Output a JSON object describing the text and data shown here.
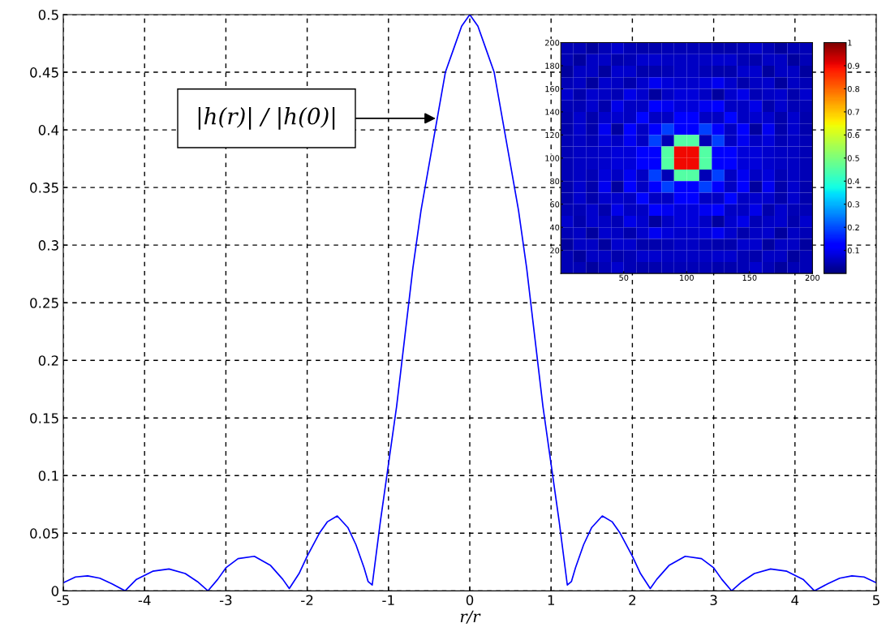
{
  "chart_data": [
    {
      "type": "line",
      "xlabel": "r/r",
      "x": [
        -5,
        -4.85,
        -4.7,
        -4.55,
        -4.4,
        -4.24,
        -4.1,
        -3.9,
        -3.7,
        -3.5,
        -3.35,
        -3.22,
        -3.1,
        -3,
        -2.85,
        -2.65,
        -2.45,
        -2.3,
        -2.22,
        -2.1,
        -2,
        -1.85,
        -1.75,
        -1.63,
        -1.5,
        -1.4,
        -1.3,
        -1.25,
        -1.2,
        -1.1,
        -1,
        -0.9,
        -0.8,
        -0.7,
        -0.6,
        -0.5,
        -0.4,
        -0.3,
        -0.2,
        -0.1,
        0,
        0.1,
        0.2,
        0.3,
        0.4,
        0.5,
        0.6,
        0.7,
        0.8,
        0.9,
        1,
        1.1,
        1.2,
        1.25,
        1.3,
        1.4,
        1.5,
        1.63,
        1.75,
        1.85,
        2,
        2.1,
        2.22,
        2.3,
        2.45,
        2.65,
        2.85,
        3,
        3.1,
        3.22,
        3.35,
        3.5,
        3.7,
        3.9,
        4.1,
        4.24,
        4.4,
        4.55,
        4.7,
        4.85,
        5
      ],
      "series": [
        {
          "color": "#0000ff",
          "values": [
            0.007,
            0.012,
            0.013,
            0.011,
            0.006,
            0.0,
            0.01,
            0.017,
            0.019,
            0.015,
            0.008,
            0.0,
            0.01,
            0.02,
            0.028,
            0.03,
            0.022,
            0.01,
            0.002,
            0.015,
            0.03,
            0.05,
            0.06,
            0.065,
            0.055,
            0.04,
            0.02,
            0.008,
            0.005,
            0.06,
            0.11,
            0.16,
            0.22,
            0.28,
            0.33,
            0.37,
            0.41,
            0.45,
            0.47,
            0.49,
            0.5,
            0.49,
            0.47,
            0.45,
            0.41,
            0.37,
            0.33,
            0.28,
            0.22,
            0.16,
            0.11,
            0.06,
            0.005,
            0.008,
            0.02,
            0.04,
            0.055,
            0.065,
            0.06,
            0.05,
            0.03,
            0.015,
            0.002,
            0.01,
            0.022,
            0.03,
            0.028,
            0.02,
            0.01,
            0.0,
            0.008,
            0.015,
            0.019,
            0.017,
            0.01,
            0.0,
            0.006,
            0.011,
            0.013,
            0.012,
            0.007
          ]
        }
      ],
      "xlim": [
        -5,
        5
      ],
      "ylim": [
        0,
        0.5
      ],
      "xticks": [
        -5,
        -4,
        -3,
        -2,
        -1,
        0,
        1,
        2,
        3,
        4,
        5
      ],
      "yticks": [
        0,
        0.05,
        0.1,
        0.15,
        0.2,
        0.25,
        0.3,
        0.35,
        0.4,
        0.45,
        0.5
      ],
      "grid": true,
      "annotations": [
        {
          "text": "|h(r)| / |h(0)|",
          "x": -0.42,
          "y": 0.41
        }
      ]
    },
    {
      "type": "heatmap",
      "xlim": [
        0,
        200
      ],
      "ylim": [
        0,
        200
      ],
      "xticks": [
        50,
        100,
        150,
        200
      ],
      "yticks": [
        20,
        40,
        60,
        80,
        100,
        120,
        140,
        160,
        180,
        200
      ],
      "clim": [
        0,
        1
      ],
      "cticks": [
        0.1,
        0.2,
        0.3,
        0.4,
        0.5,
        0.6,
        0.7,
        0.8,
        0.9,
        1
      ],
      "cells": [
        [
          0.05,
          0.05,
          0.03,
          0.05,
          0.07,
          0.05,
          0.04,
          0.04,
          0.05,
          0.05,
          0.05,
          0.05,
          0.04,
          0.04,
          0.05,
          0.07,
          0.05,
          0.03,
          0.05,
          0.05
        ],
        [
          0.05,
          0.03,
          0.06,
          0.06,
          0.04,
          0.05,
          0.07,
          0.07,
          0.06,
          0.06,
          0.06,
          0.06,
          0.07,
          0.07,
          0.05,
          0.04,
          0.06,
          0.06,
          0.03,
          0.05
        ],
        [
          0.03,
          0.06,
          0.06,
          0.03,
          0.07,
          0.07,
          0.04,
          0.04,
          0.05,
          0.06,
          0.06,
          0.05,
          0.04,
          0.04,
          0.07,
          0.07,
          0.03,
          0.06,
          0.06,
          0.03
        ],
        [
          0.05,
          0.06,
          0.03,
          0.07,
          0.06,
          0.04,
          0.07,
          0.1,
          0.08,
          0.07,
          0.07,
          0.08,
          0.1,
          0.07,
          0.04,
          0.06,
          0.07,
          0.03,
          0.06,
          0.05
        ],
        [
          0.07,
          0.04,
          0.07,
          0.06,
          0.05,
          0.09,
          0.07,
          0.03,
          0.06,
          0.08,
          0.08,
          0.06,
          0.03,
          0.07,
          0.09,
          0.05,
          0.06,
          0.07,
          0.04,
          0.07
        ],
        [
          0.05,
          0.05,
          0.07,
          0.04,
          0.09,
          0.06,
          0.06,
          0.12,
          0.1,
          0.08,
          0.08,
          0.1,
          0.12,
          0.06,
          0.06,
          0.09,
          0.04,
          0.07,
          0.05,
          0.05
        ],
        [
          0.04,
          0.07,
          0.04,
          0.07,
          0.07,
          0.06,
          0.13,
          0.06,
          0.06,
          0.11,
          0.11,
          0.06,
          0.06,
          0.13,
          0.06,
          0.07,
          0.07,
          0.04,
          0.07,
          0.04
        ],
        [
          0.04,
          0.07,
          0.04,
          0.1,
          0.03,
          0.12,
          0.06,
          0.11,
          0.19,
          0.12,
          0.12,
          0.19,
          0.11,
          0.06,
          0.12,
          0.03,
          0.1,
          0.04,
          0.07,
          0.04
        ],
        [
          0.05,
          0.06,
          0.05,
          0.08,
          0.06,
          0.1,
          0.06,
          0.19,
          0.05,
          0.45,
          0.45,
          0.05,
          0.19,
          0.06,
          0.1,
          0.06,
          0.08,
          0.05,
          0.06,
          0.05
        ],
        [
          0.05,
          0.06,
          0.06,
          0.07,
          0.08,
          0.08,
          0.11,
          0.12,
          0.45,
          0.9,
          0.9,
          0.45,
          0.12,
          0.11,
          0.08,
          0.08,
          0.07,
          0.06,
          0.06,
          0.05
        ],
        [
          0.05,
          0.06,
          0.06,
          0.07,
          0.08,
          0.08,
          0.11,
          0.12,
          0.45,
          0.9,
          0.9,
          0.45,
          0.12,
          0.11,
          0.08,
          0.08,
          0.07,
          0.06,
          0.06,
          0.05
        ],
        [
          0.05,
          0.06,
          0.05,
          0.08,
          0.06,
          0.1,
          0.06,
          0.19,
          0.05,
          0.45,
          0.45,
          0.05,
          0.19,
          0.06,
          0.1,
          0.06,
          0.08,
          0.05,
          0.06,
          0.05
        ],
        [
          0.04,
          0.07,
          0.04,
          0.1,
          0.03,
          0.12,
          0.06,
          0.11,
          0.19,
          0.12,
          0.12,
          0.19,
          0.11,
          0.06,
          0.12,
          0.03,
          0.1,
          0.04,
          0.07,
          0.04
        ],
        [
          0.04,
          0.07,
          0.04,
          0.07,
          0.07,
          0.06,
          0.13,
          0.06,
          0.06,
          0.11,
          0.11,
          0.06,
          0.06,
          0.13,
          0.06,
          0.07,
          0.07,
          0.04,
          0.07,
          0.04
        ],
        [
          0.05,
          0.05,
          0.07,
          0.04,
          0.09,
          0.06,
          0.06,
          0.12,
          0.1,
          0.08,
          0.08,
          0.1,
          0.12,
          0.06,
          0.06,
          0.09,
          0.04,
          0.07,
          0.05,
          0.05
        ],
        [
          0.07,
          0.04,
          0.07,
          0.06,
          0.05,
          0.09,
          0.07,
          0.03,
          0.06,
          0.08,
          0.08,
          0.06,
          0.03,
          0.07,
          0.09,
          0.05,
          0.06,
          0.07,
          0.04,
          0.07
        ],
        [
          0.05,
          0.06,
          0.03,
          0.07,
          0.06,
          0.04,
          0.07,
          0.1,
          0.08,
          0.07,
          0.07,
          0.08,
          0.1,
          0.07,
          0.04,
          0.06,
          0.07,
          0.03,
          0.06,
          0.05
        ],
        [
          0.03,
          0.06,
          0.06,
          0.03,
          0.07,
          0.07,
          0.04,
          0.04,
          0.05,
          0.06,
          0.06,
          0.05,
          0.04,
          0.04,
          0.07,
          0.07,
          0.03,
          0.06,
          0.06,
          0.03
        ],
        [
          0.05,
          0.03,
          0.06,
          0.06,
          0.04,
          0.05,
          0.07,
          0.07,
          0.06,
          0.06,
          0.06,
          0.06,
          0.07,
          0.07,
          0.05,
          0.04,
          0.06,
          0.06,
          0.03,
          0.05
        ],
        [
          0.05,
          0.05,
          0.03,
          0.05,
          0.07,
          0.05,
          0.04,
          0.04,
          0.05,
          0.05,
          0.05,
          0.05,
          0.04,
          0.04,
          0.05,
          0.07,
          0.05,
          0.03,
          0.05,
          0.05
        ]
      ]
    }
  ]
}
